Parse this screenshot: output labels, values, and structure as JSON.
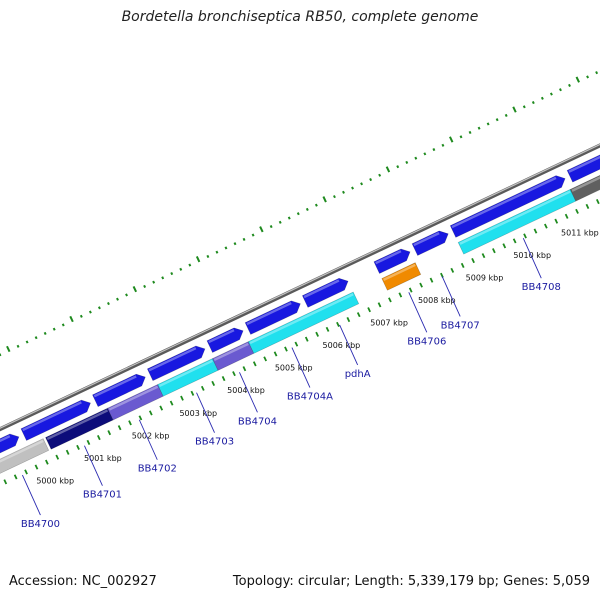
{
  "title": "Bordetella bronchiseptica RB50, complete genome",
  "footer": {
    "accession": "Accession: NC_002927",
    "topology": "Topology: circular; Length: 5,339,179 bp; Genes: 5,059"
  },
  "colors": {
    "backbone": "#7e7e7e",
    "tick": "#1e8a1e",
    "gene_blue": "#1818e0",
    "gene_navy": "#0c0c7a",
    "gene_purple": "#6a5ad0",
    "gene_cyan": "#20e0ee",
    "gene_orange": "#f08a00",
    "gene_gray": "#c0c0c0",
    "gene_dark_gray": "#606060",
    "label": "#1a1aa0"
  },
  "scale": {
    "unit": "kbp",
    "ticks": [
      {
        "kb": 5000,
        "label": "5000 kbp"
      },
      {
        "kb": 5001,
        "label": "5001 kbp"
      },
      {
        "kb": 5002,
        "label": "5002 kbp"
      },
      {
        "kb": 5003,
        "label": "5003 kbp"
      },
      {
        "kb": 5004,
        "label": "5004 kbp"
      },
      {
        "kb": 5005,
        "label": "5005 kbp"
      },
      {
        "kb": 5006,
        "label": "5006 kbp"
      },
      {
        "kb": 5007,
        "label": "5007 kbp"
      },
      {
        "kb": 5008,
        "label": "5008 kbp"
      },
      {
        "kb": 5009,
        "label": "5009 kbp"
      },
      {
        "kb": 5010,
        "label": "5010 kbp"
      },
      {
        "kb": 5011,
        "label": "5011 kbp"
      }
    ]
  },
  "forward_features": [
    {
      "start": 4999.0,
      "end": 4999.85,
      "color": "blue"
    },
    {
      "start": 4999.95,
      "end": 5001.35,
      "color": "blue"
    },
    {
      "start": 5001.45,
      "end": 5002.5,
      "color": "blue"
    },
    {
      "start": 5002.6,
      "end": 5003.75,
      "color": "blue"
    },
    {
      "start": 5003.85,
      "end": 5004.55,
      "color": "blue"
    },
    {
      "start": 5004.65,
      "end": 5005.75,
      "color": "blue"
    },
    {
      "start": 5005.85,
      "end": 5006.75,
      "color": "blue"
    },
    {
      "start": 5007.35,
      "end": 5008.05,
      "color": "blue"
    },
    {
      "start": 5008.15,
      "end": 5008.85,
      "color": "blue"
    },
    {
      "start": 5008.95,
      "end": 5011.3,
      "color": "blue"
    },
    {
      "start": 5011.4,
      "end": 5012.4,
      "color": "blue"
    }
  ],
  "reverse_features": [
    {
      "start": 4999.0,
      "end": 5000.25,
      "color": "gray"
    },
    {
      "start": 5000.3,
      "end": 5001.6,
      "color": "navy"
    },
    {
      "start": 5001.6,
      "end": 5002.65,
      "color": "purple"
    },
    {
      "start": 5002.65,
      "end": 5003.8,
      "color": "cyan"
    },
    {
      "start": 5003.8,
      "end": 5004.55,
      "color": "purple"
    },
    {
      "start": 5004.55,
      "end": 5006.75,
      "color": "cyan"
    },
    {
      "start": 5007.35,
      "end": 5008.05,
      "color": "orange"
    },
    {
      "start": 5008.95,
      "end": 5011.3,
      "color": "cyan"
    },
    {
      "start": 5011.3,
      "end": 5012.4,
      "color": "dark_gray"
    }
  ],
  "genes": [
    {
      "name": "BB4700",
      "kb": 4999.6
    },
    {
      "name": "BB4701",
      "kb": 5000.9
    },
    {
      "name": "BB4702",
      "kb": 5002.05
    },
    {
      "name": "BB4703",
      "kb": 5003.25
    },
    {
      "name": "BB4704",
      "kb": 5004.15
    },
    {
      "name": "BB4704A",
      "kb": 5005.25
    },
    {
      "name": "pdhA",
      "kb": 5006.25
    },
    {
      "name": "BB4706",
      "kb": 5007.7
    },
    {
      "name": "BB4707",
      "kb": 5008.4
    },
    {
      "name": "BB4708",
      "kb": 5010.1
    }
  ]
}
